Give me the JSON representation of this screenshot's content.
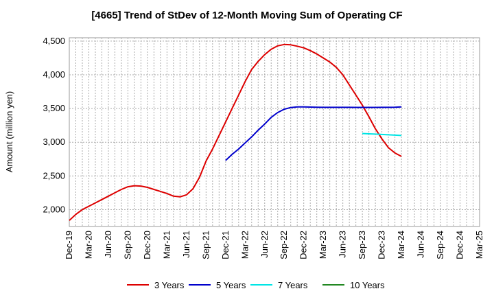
{
  "chart_data": {
    "type": "line",
    "title": "[4665]  Trend of StDev of 12-Month Moving Sum of Operating CF",
    "ylabel": "Amount (million yen)",
    "xlabel": "",
    "ylim": [
      1750,
      4550
    ],
    "yticks": [
      2000,
      2500,
      3000,
      3500,
      4000,
      4500
    ],
    "ytick_labels": [
      "2,000",
      "2,500",
      "3,000",
      "3,500",
      "4,000",
      "4,500"
    ],
    "x_start": "Dec-19",
    "x_end": "Mar-25",
    "xtick_labels": [
      "Dec-19",
      "Mar-20",
      "Jun-20",
      "Sep-20",
      "Dec-20",
      "Mar-21",
      "Jun-21",
      "Sep-21",
      "Dec-21",
      "Mar-22",
      "Jun-22",
      "Sep-22",
      "Dec-22",
      "Mar-23",
      "Jun-23",
      "Sep-23",
      "Dec-23",
      "Mar-24",
      "Jun-24",
      "Sep-24",
      "Dec-24",
      "Mar-25"
    ],
    "grid": true,
    "legend_position": "bottom",
    "series": [
      {
        "name": "3 Years",
        "color": "#dd0000",
        "x": [
          "Dec-19",
          "Jan-20",
          "Feb-20",
          "Mar-20",
          "Apr-20",
          "May-20",
          "Jun-20",
          "Jul-20",
          "Aug-20",
          "Sep-20",
          "Oct-20",
          "Nov-20",
          "Dec-20",
          "Jan-21",
          "Feb-21",
          "Mar-21",
          "Apr-21",
          "May-21",
          "Jun-21",
          "Jul-21",
          "Aug-21",
          "Sep-21",
          "Oct-21",
          "Nov-21",
          "Dec-21",
          "Jan-22",
          "Feb-22",
          "Mar-22",
          "Apr-22",
          "May-22",
          "Jun-22",
          "Jul-22",
          "Aug-22",
          "Sep-22",
          "Oct-22",
          "Nov-22",
          "Dec-22",
          "Jan-23",
          "Feb-23",
          "Mar-23",
          "Apr-23",
          "May-23",
          "Jun-23",
          "Jul-23",
          "Aug-23",
          "Sep-23",
          "Oct-23",
          "Nov-23",
          "Dec-23",
          "Jan-24",
          "Feb-24",
          "Mar-24"
        ],
        "values": [
          1840,
          1930,
          2000,
          2050,
          2100,
          2150,
          2200,
          2250,
          2300,
          2340,
          2355,
          2350,
          2330,
          2300,
          2270,
          2240,
          2200,
          2190,
          2220,
          2310,
          2480,
          2720,
          2900,
          3100,
          3300,
          3500,
          3700,
          3900,
          4080,
          4200,
          4300,
          4380,
          4430,
          4450,
          4445,
          4425,
          4400,
          4360,
          4310,
          4250,
          4190,
          4110,
          4000,
          3850,
          3700,
          3550,
          3380,
          3200,
          3050,
          2920,
          2840,
          2790
        ]
      },
      {
        "name": "5 Years",
        "color": "#0000cc",
        "x": [
          "Dec-21",
          "Jan-22",
          "Feb-22",
          "Mar-22",
          "Apr-22",
          "May-22",
          "Jun-22",
          "Jul-22",
          "Aug-22",
          "Sep-22",
          "Oct-22",
          "Nov-22",
          "Dec-22",
          "Jan-23",
          "Feb-23",
          "Mar-23",
          "Apr-23",
          "May-23",
          "Jun-23",
          "Jul-23",
          "Aug-23",
          "Sep-23",
          "Oct-23",
          "Nov-23",
          "Dec-23",
          "Jan-24",
          "Feb-24",
          "Mar-24"
        ],
        "values": [
          2730,
          2820,
          2900,
          2990,
          3080,
          3180,
          3270,
          3370,
          3440,
          3490,
          3515,
          3525,
          3525,
          3522,
          3520,
          3518,
          3518,
          3518,
          3518,
          3518,
          3517,
          3517,
          3517,
          3517,
          3518,
          3518,
          3520,
          3525
        ],
        "x_offset_months": 21
      },
      {
        "name": "7 Years",
        "color": "#00e5e5",
        "x": [
          "Sep-23",
          "Oct-23",
          "Nov-23",
          "Dec-23",
          "Jan-24",
          "Feb-24",
          "Mar-24"
        ],
        "values": [
          3130,
          3125,
          3120,
          3115,
          3110,
          3105,
          3100
        ]
      },
      {
        "name": "10 Years",
        "color": "#228822",
        "x": [],
        "values": []
      }
    ]
  }
}
